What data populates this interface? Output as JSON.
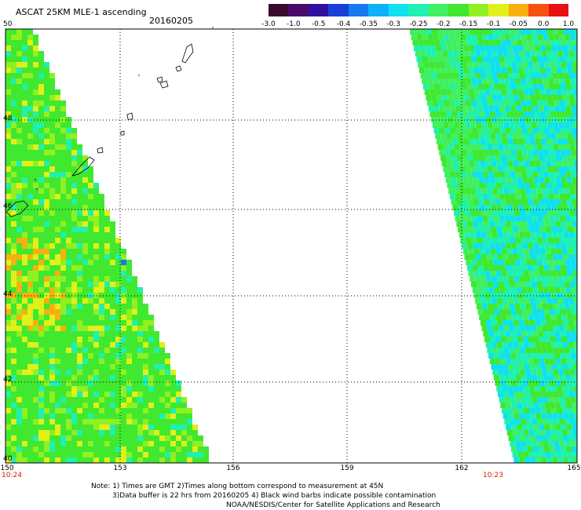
{
  "header": {
    "title": "ASCAT 25KM MLE-1 ascending",
    "date": "20160205"
  },
  "colorbar": {
    "colors": [
      "#3a0a2e",
      "#4a0a6a",
      "#3010a0",
      "#1840d8",
      "#1878f0",
      "#10b0f8",
      "#10e0f0",
      "#20f0b0",
      "#40f060",
      "#40e830",
      "#90f020",
      "#e0f018",
      "#f8b010",
      "#f85010",
      "#e81010"
    ],
    "labels": [
      "-3.0",
      "-1.0",
      "-0.5",
      "-0.4",
      "-0.35",
      "-0.3",
      "-0.25",
      "-0.2",
      "-0.15",
      "-0.1",
      "-0.05",
      "0.0",
      "1.0"
    ]
  },
  "axes": {
    "lat_labels": [
      "50",
      "48",
      "46",
      "44",
      "42",
      "40"
    ],
    "lon_labels": [
      "150",
      "153",
      "156",
      "159",
      "162",
      "165"
    ]
  },
  "times": [
    "10:24",
    "10:23"
  ],
  "notes": [
    "Note: 1) Times are GMT 2)Times along bottom correspond to measurement at 45N",
    "3)Data buffer is 22 hrs from 20160205 4) Black wind barbs indicate possible contamination",
    "NOAA/NESDIS/Center for Satellite Applications and Research"
  ]
}
